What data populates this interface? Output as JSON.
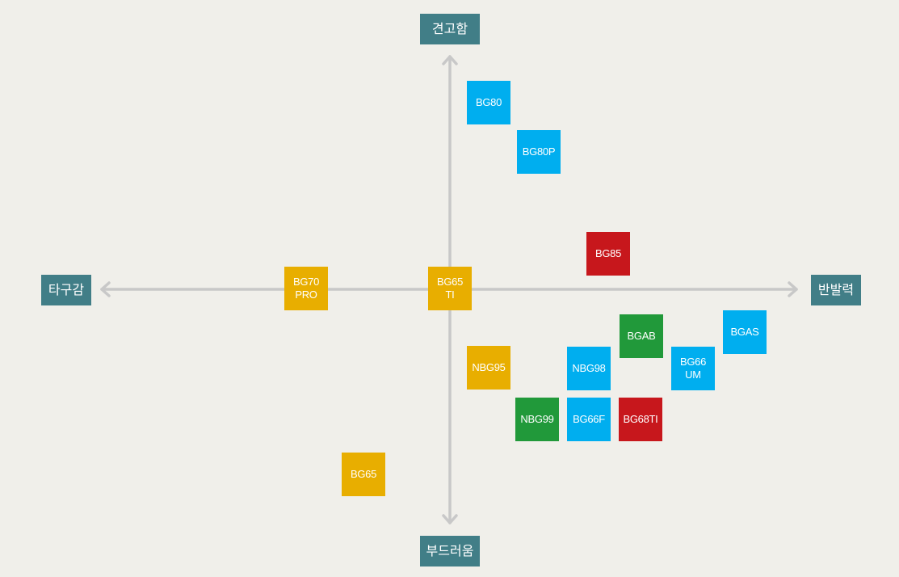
{
  "axes": {
    "top": "견고함",
    "bottom": "부드러움",
    "left": "타구감",
    "right": "반발력"
  },
  "products": [
    {
      "label": "BG80",
      "color": "blue"
    },
    {
      "label": "BG80P",
      "color": "blue"
    },
    {
      "label": "BG85",
      "color": "red"
    },
    {
      "label": "BG70\nPRO",
      "color": "yellow"
    },
    {
      "label": "BG65\nTI",
      "color": "yellow"
    },
    {
      "label": "BGAS",
      "color": "blue"
    },
    {
      "label": "BGAB",
      "color": "green"
    },
    {
      "label": "NBG95",
      "color": "yellow"
    },
    {
      "label": "NBG98",
      "color": "blue"
    },
    {
      "label": "BG66\nUM",
      "color": "blue"
    },
    {
      "label": "NBG99",
      "color": "green"
    },
    {
      "label": "BG66F",
      "color": "blue"
    },
    {
      "label": "BG68TI",
      "color": "red"
    },
    {
      "label": "BG65",
      "color": "yellow"
    }
  ],
  "colors": {
    "blue": "#00aeef",
    "yellow": "#e8ae00",
    "red": "#c7171c",
    "green": "#21993a",
    "axis_label_bg": "#417e87",
    "axis_line": "#c8c8c8",
    "background": "#f0efea"
  }
}
